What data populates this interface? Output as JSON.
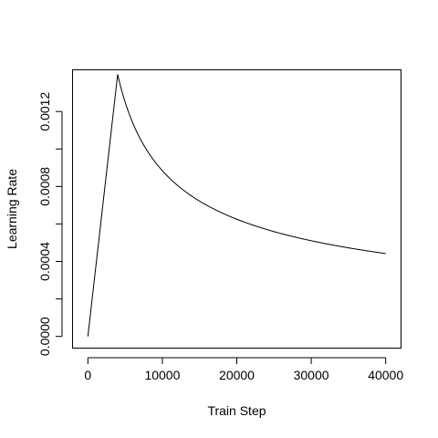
{
  "chart_data": {
    "type": "line",
    "title": "",
    "xlabel": "Train Step",
    "ylabel": "Learning Rate",
    "xlim": [
      -2000,
      42000
    ],
    "ylim": [
      -6e-05,
      0.00142
    ],
    "x_ticks": [
      0,
      10000,
      20000,
      30000,
      40000
    ],
    "x_tick_labels": [
      "0",
      "10000",
      "20000",
      "30000",
      "40000"
    ],
    "y_ticks": [
      0,
      0.0002,
      0.0004,
      0.0006,
      0.0008,
      0.001,
      0.0012
    ],
    "y_labeled_ticks": [
      0,
      0.0004,
      0.0008,
      0.0012
    ],
    "y_tick_labels": [
      "0.0000",
      "0.0004",
      "0.0008",
      "0.0012"
    ],
    "grid": false,
    "legend": "none",
    "line_color": "#000000",
    "series": [
      {
        "x": [
          0,
          4000,
          5000,
          6000,
          8000,
          10000,
          12000,
          15000,
          20000,
          25000,
          30000,
          35000,
          40000
        ],
        "values": [
          0.0,
          0.001398,
          0.00125,
          0.001141,
          0.000988,
          0.000884,
          0.000807,
          0.000722,
          0.000625,
          0.000559,
          0.00051,
          0.000472,
          0.000442
        ]
      }
    ]
  }
}
